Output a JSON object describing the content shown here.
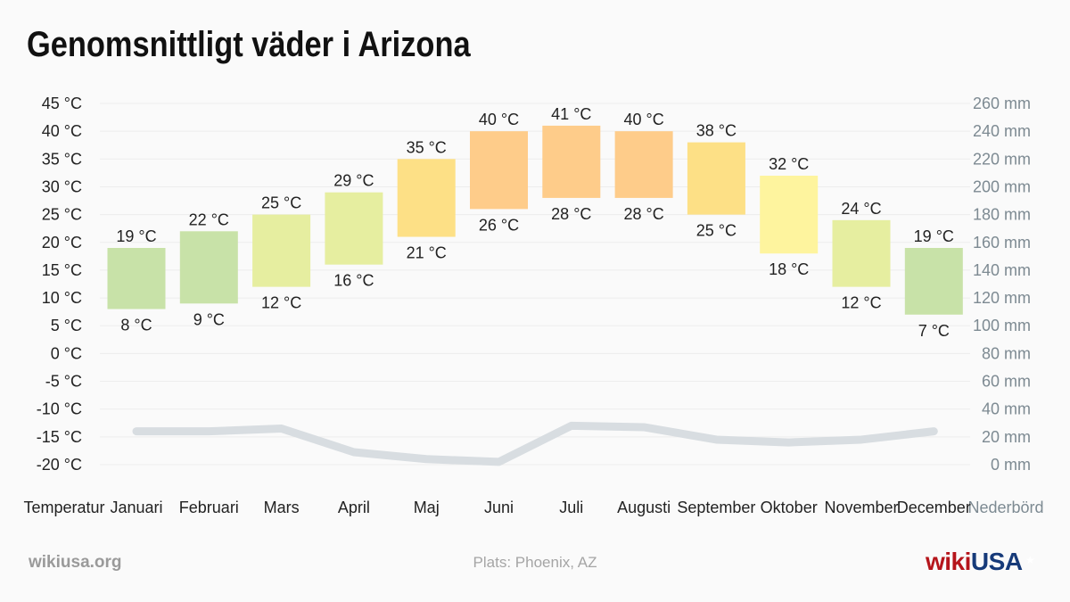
{
  "title": "Genomsnittligt väder i Arizona",
  "footer": {
    "site": "wikiusa.org",
    "location": "Plats: Phoenix, AZ",
    "brand_wiki": "wiki",
    "brand_usa": "USA"
  },
  "colors": {
    "precipitation_line": "#d8dde1",
    "grid": "#ededed",
    "text": "#222222",
    "right_axis_text": "#7d8a92",
    "brand_red": "#b5151b",
    "brand_blue": "#163a79"
  },
  "chart_data": {
    "type": "bar",
    "x_axis_left_label": "Temperatur",
    "x_axis_right_label": "Nederbörd",
    "categories": [
      "Januari",
      "Februari",
      "Mars",
      "April",
      "Maj",
      "Juni",
      "Juli",
      "Augusti",
      "September",
      "Oktober",
      "November",
      "December"
    ],
    "temperature_unit": "°C",
    "precipitation_unit": "mm",
    "temperature_axis": {
      "ylim": [
        -20,
        45
      ],
      "ticks": [
        "45 °C",
        "40 °C",
        "35 °C",
        "30 °C",
        "25 °C",
        "20 °C",
        "15 °C",
        "10 °C",
        "5 °C",
        "0 °C",
        "-5 °C",
        "-10 °C",
        "-15 °C",
        "-20 °C"
      ]
    },
    "precipitation_axis": {
      "ylim": [
        0,
        260
      ],
      "ticks": [
        "260 mm",
        "240 mm",
        "220 mm",
        "200 mm",
        "180 mm",
        "160 mm",
        "140 mm",
        "120 mm",
        "100 mm",
        "80 mm",
        "60 mm",
        "40 mm",
        "20 mm",
        "0 mm"
      ]
    },
    "series": [
      {
        "name": "Temperatur",
        "type": "floating-bar",
        "min": [
          8,
          9,
          12,
          16,
          21,
          26,
          28,
          28,
          25,
          18,
          12,
          7
        ],
        "max": [
          19,
          22,
          25,
          29,
          35,
          40,
          41,
          40,
          38,
          32,
          24,
          19
        ],
        "min_labels": [
          "8 °C",
          "9 °C",
          "12 °C",
          "16 °C",
          "21 °C",
          "26 °C",
          "28 °C",
          "28 °C",
          "25 °C",
          "18 °C",
          "12 °C",
          "7 °C"
        ],
        "max_labels": [
          "19 °C",
          "22 °C",
          "25 °C",
          "29 °C",
          "35 °C",
          "40 °C",
          "41 °C",
          "40 °C",
          "38 °C",
          "32 °C",
          "24 °C",
          "19 °C"
        ],
        "colors": [
          "#c8e2a8",
          "#c8e2a8",
          "#e6eea0",
          "#e6eea0",
          "#fde086",
          "#fecc8a",
          "#fecc8a",
          "#fecc8a",
          "#fde086",
          "#fef49e",
          "#e6eea0",
          "#c8e2a8"
        ]
      },
      {
        "name": "Nederbörd",
        "type": "line",
        "values": [
          24,
          24,
          26,
          9,
          4,
          2,
          28,
          27,
          18,
          16,
          18,
          24
        ]
      }
    ],
    "grid": true,
    "legend": "none"
  }
}
